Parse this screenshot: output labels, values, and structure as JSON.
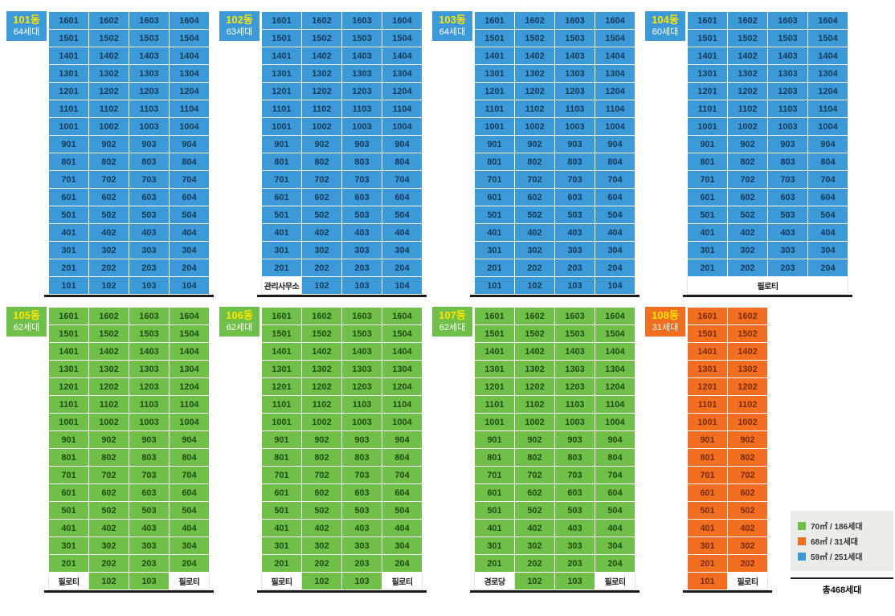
{
  "palette": {
    "blue": {
      "bg": "#3d9ad8",
      "fg": "#123a5a"
    },
    "green": {
      "bg": "#70bf48",
      "fg": "#1e4d10"
    },
    "orange": {
      "bg": "#f26f21",
      "fg": "#7c2a06"
    }
  },
  "tab_number_color": "#ffe400",
  "special_names": {
    "필로티": "piloti-cell",
    "관리사무소": "management-office-cell",
    "경로당": "senior-center-cell"
  },
  "buildings": [
    {
      "id": "101",
      "label": "101동",
      "units_label": "64세대",
      "type": "blue",
      "rows": [
        [
          "1601",
          "1602",
          "1603",
          "1604"
        ],
        [
          "1501",
          "1502",
          "1503",
          "1504"
        ],
        [
          "1401",
          "1402",
          "1403",
          "1404"
        ],
        [
          "1301",
          "1302",
          "1303",
          "1304"
        ],
        [
          "1201",
          "1202",
          "1203",
          "1204"
        ],
        [
          "1101",
          "1102",
          "1103",
          "1104"
        ],
        [
          "1001",
          "1002",
          "1003",
          "1004"
        ],
        [
          "901",
          "902",
          "903",
          "904"
        ],
        [
          "801",
          "802",
          "803",
          "804"
        ],
        [
          "701",
          "702",
          "703",
          "704"
        ],
        [
          "601",
          "602",
          "603",
          "604"
        ],
        [
          "501",
          "502",
          "503",
          "504"
        ],
        [
          "401",
          "402",
          "403",
          "404"
        ],
        [
          "301",
          "302",
          "303",
          "304"
        ],
        [
          "201",
          "202",
          "203",
          "204"
        ],
        [
          "101",
          "102",
          "103",
          "104"
        ]
      ]
    },
    {
      "id": "102",
      "label": "102동",
      "units_label": "63세대",
      "type": "blue",
      "rows": [
        [
          "1601",
          "1602",
          "1603",
          "1604"
        ],
        [
          "1501",
          "1502",
          "1503",
          "1504"
        ],
        [
          "1401",
          "1402",
          "1403",
          "1404"
        ],
        [
          "1301",
          "1302",
          "1303",
          "1304"
        ],
        [
          "1201",
          "1202",
          "1203",
          "1204"
        ],
        [
          "1101",
          "1102",
          "1103",
          "1104"
        ],
        [
          "1001",
          "1002",
          "1003",
          "1004"
        ],
        [
          "901",
          "902",
          "903",
          "904"
        ],
        [
          "801",
          "802",
          "803",
          "804"
        ],
        [
          "701",
          "702",
          "703",
          "704"
        ],
        [
          "601",
          "602",
          "603",
          "604"
        ],
        [
          "501",
          "502",
          "503",
          "504"
        ],
        [
          "401",
          "402",
          "403",
          "404"
        ],
        [
          "301",
          "302",
          "303",
          "304"
        ],
        [
          "201",
          "202",
          "203",
          "204"
        ],
        [
          "관리사무소",
          "102",
          "103",
          "104"
        ]
      ]
    },
    {
      "id": "103",
      "label": "103동",
      "units_label": "64세대",
      "type": "blue",
      "rows": [
        [
          "1601",
          "1602",
          "1603",
          "1604"
        ],
        [
          "1501",
          "1502",
          "1503",
          "1504"
        ],
        [
          "1401",
          "1402",
          "1403",
          "1404"
        ],
        [
          "1301",
          "1302",
          "1303",
          "1304"
        ],
        [
          "1201",
          "1202",
          "1203",
          "1204"
        ],
        [
          "1101",
          "1102",
          "1103",
          "1104"
        ],
        [
          "1001",
          "1002",
          "1003",
          "1004"
        ],
        [
          "901",
          "902",
          "903",
          "904"
        ],
        [
          "801",
          "802",
          "803",
          "804"
        ],
        [
          "701",
          "702",
          "703",
          "704"
        ],
        [
          "601",
          "602",
          "603",
          "604"
        ],
        [
          "501",
          "502",
          "503",
          "504"
        ],
        [
          "401",
          "402",
          "403",
          "404"
        ],
        [
          "301",
          "302",
          "303",
          "304"
        ],
        [
          "201",
          "202",
          "203",
          "204"
        ],
        [
          "101",
          "102",
          "103",
          "104"
        ]
      ]
    },
    {
      "id": "104",
      "label": "104동",
      "units_label": "60세대",
      "type": "blue",
      "rows": [
        [
          "1601",
          "1602",
          "1603",
          "1604"
        ],
        [
          "1501",
          "1502",
          "1503",
          "1504"
        ],
        [
          "1401",
          "1402",
          "1403",
          "1404"
        ],
        [
          "1301",
          "1302",
          "1303",
          "1304"
        ],
        [
          "1201",
          "1202",
          "1203",
          "1204"
        ],
        [
          "1101",
          "1102",
          "1103",
          "1104"
        ],
        [
          "1001",
          "1002",
          "1003",
          "1004"
        ],
        [
          "901",
          "902",
          "903",
          "904"
        ],
        [
          "801",
          "802",
          "803",
          "804"
        ],
        [
          "701",
          "702",
          "703",
          "704"
        ],
        [
          "601",
          "602",
          "603",
          "604"
        ],
        [
          "501",
          "502",
          "503",
          "504"
        ],
        [
          "401",
          "402",
          "403",
          "404"
        ],
        [
          "301",
          "302",
          "303",
          "304"
        ],
        [
          "201",
          "202",
          "203",
          "204"
        ],
        [
          {
            "v": "필로티",
            "span": 4
          }
        ]
      ]
    },
    {
      "id": "105",
      "label": "105동",
      "units_label": "62세대",
      "type": "green",
      "rows": [
        [
          "1601",
          "1602",
          "1603",
          "1604"
        ],
        [
          "1501",
          "1502",
          "1503",
          "1504"
        ],
        [
          "1401",
          "1402",
          "1403",
          "1404"
        ],
        [
          "1301",
          "1302",
          "1303",
          "1304"
        ],
        [
          "1201",
          "1202",
          "1203",
          "1204"
        ],
        [
          "1101",
          "1102",
          "1103",
          "1104"
        ],
        [
          "1001",
          "1002",
          "1003",
          "1004"
        ],
        [
          "901",
          "902",
          "903",
          "904"
        ],
        [
          "801",
          "802",
          "803",
          "804"
        ],
        [
          "701",
          "702",
          "703",
          "704"
        ],
        [
          "601",
          "602",
          "603",
          "604"
        ],
        [
          "501",
          "502",
          "503",
          "504"
        ],
        [
          "401",
          "402",
          "403",
          "404"
        ],
        [
          "301",
          "302",
          "303",
          "304"
        ],
        [
          "201",
          "202",
          "203",
          "204"
        ],
        [
          "필로티",
          "102",
          "103",
          "필로티"
        ]
      ]
    },
    {
      "id": "106",
      "label": "106동",
      "units_label": "62세대",
      "type": "green",
      "rows": [
        [
          "1601",
          "1602",
          "1603",
          "1604"
        ],
        [
          "1501",
          "1502",
          "1503",
          "1504"
        ],
        [
          "1401",
          "1402",
          "1403",
          "1404"
        ],
        [
          "1301",
          "1302",
          "1303",
          "1304"
        ],
        [
          "1201",
          "1202",
          "1203",
          "1204"
        ],
        [
          "1101",
          "1102",
          "1103",
          "1104"
        ],
        [
          "1001",
          "1002",
          "1003",
          "1004"
        ],
        [
          "901",
          "902",
          "903",
          "904"
        ],
        [
          "801",
          "802",
          "803",
          "804"
        ],
        [
          "701",
          "702",
          "703",
          "704"
        ],
        [
          "601",
          "602",
          "603",
          "604"
        ],
        [
          "501",
          "502",
          "503",
          "504"
        ],
        [
          "401",
          "402",
          "403",
          "404"
        ],
        [
          "301",
          "302",
          "303",
          "304"
        ],
        [
          "201",
          "202",
          "203",
          "204"
        ],
        [
          "필로티",
          "102",
          "103",
          "필로티"
        ]
      ]
    },
    {
      "id": "107",
      "label": "107동",
      "units_label": "62세대",
      "type": "green",
      "rows": [
        [
          "1601",
          "1602",
          "1603",
          "1604"
        ],
        [
          "1501",
          "1502",
          "1503",
          "1504"
        ],
        [
          "1401",
          "1402",
          "1403",
          "1404"
        ],
        [
          "1301",
          "1302",
          "1303",
          "1304"
        ],
        [
          "1201",
          "1202",
          "1203",
          "1204"
        ],
        [
          "1101",
          "1102",
          "1103",
          "1104"
        ],
        [
          "1001",
          "1002",
          "1003",
          "1004"
        ],
        [
          "901",
          "902",
          "903",
          "904"
        ],
        [
          "801",
          "802",
          "803",
          "804"
        ],
        [
          "701",
          "702",
          "703",
          "704"
        ],
        [
          "601",
          "602",
          "603",
          "604"
        ],
        [
          "501",
          "502",
          "503",
          "504"
        ],
        [
          "401",
          "402",
          "403",
          "404"
        ],
        [
          "301",
          "302",
          "303",
          "304"
        ],
        [
          "201",
          "202",
          "203",
          "204"
        ],
        [
          "경로당",
          "102",
          "103",
          "필로티"
        ]
      ]
    },
    {
      "id": "108",
      "label": "108동",
      "units_label": "31세대",
      "type": "orange",
      "rows": [
        [
          "1601",
          "1602"
        ],
        [
          "1501",
          "1502"
        ],
        [
          "1401",
          "1402"
        ],
        [
          "1301",
          "1302"
        ],
        [
          "1201",
          "1202"
        ],
        [
          "1101",
          "1102"
        ],
        [
          "1001",
          "1002"
        ],
        [
          "901",
          "902"
        ],
        [
          "801",
          "802"
        ],
        [
          "701",
          "702"
        ],
        [
          "601",
          "602"
        ],
        [
          "501",
          "502"
        ],
        [
          "401",
          "402"
        ],
        [
          "301",
          "302"
        ],
        [
          "201",
          "202"
        ],
        [
          "101",
          "필로티"
        ]
      ]
    }
  ],
  "legend": {
    "items": [
      {
        "color": "#70bf48",
        "label": "70㎡ / 186세대"
      },
      {
        "color": "#f26f21",
        "label": "68㎡ /  31세대"
      },
      {
        "color": "#3d9ad8",
        "label": "59㎡ / 251세대"
      }
    ],
    "total": "총468세대"
  }
}
